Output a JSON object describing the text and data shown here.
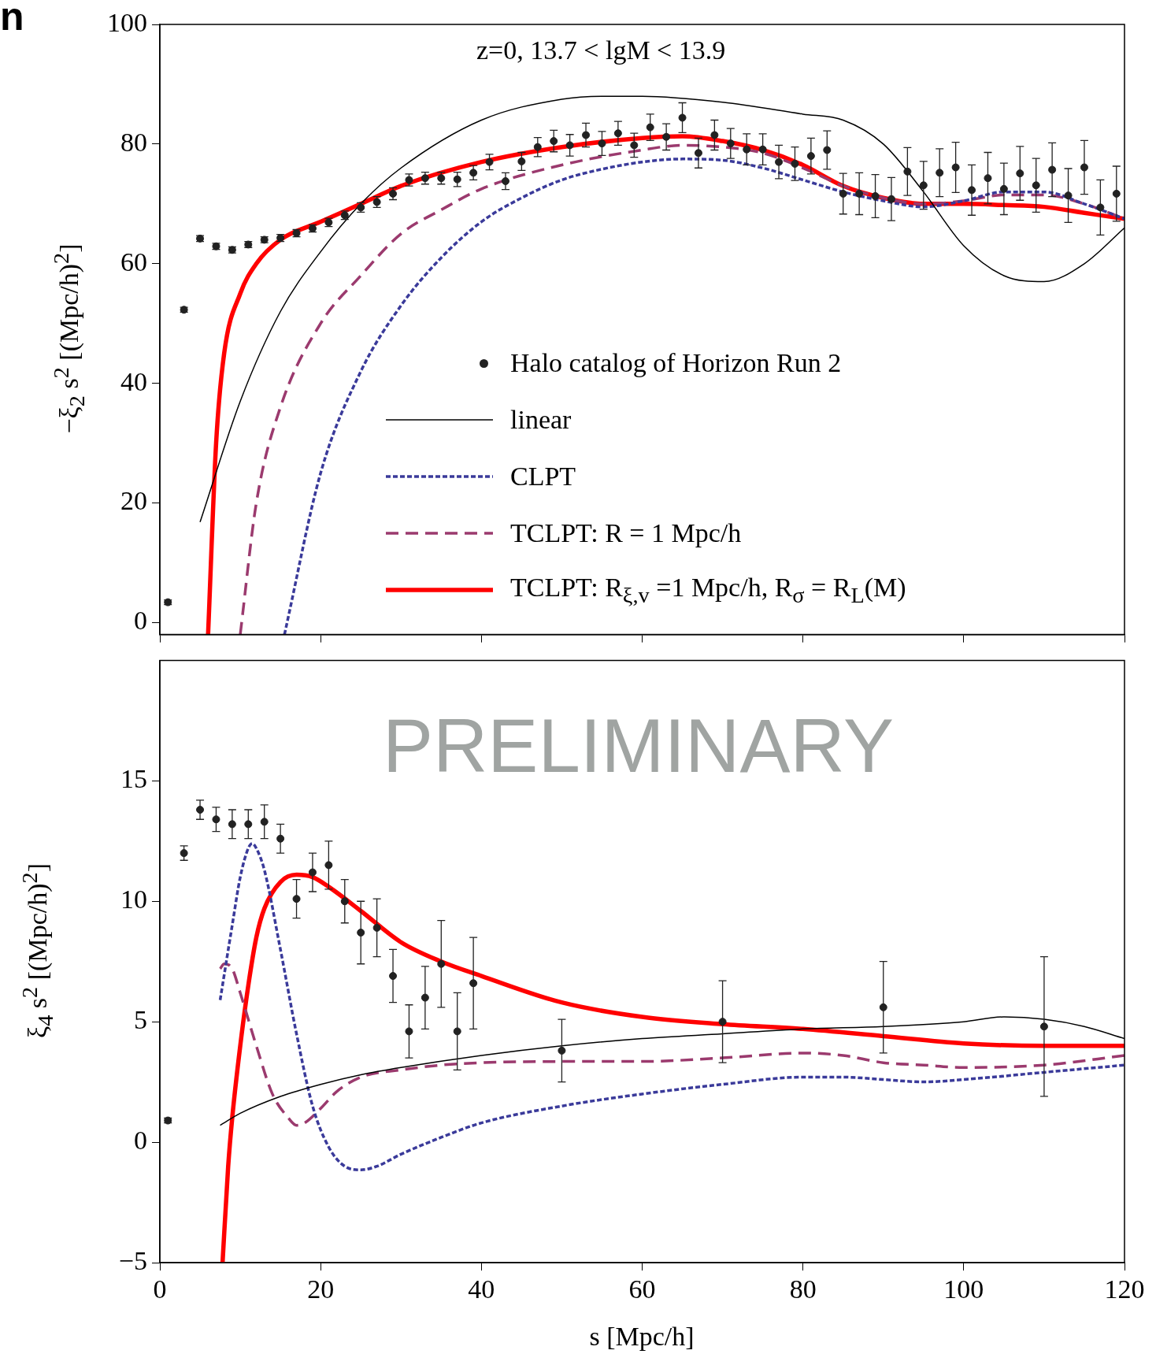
{
  "chart_data": [
    {
      "type": "scatter",
      "ylabel": "−ξ$_{2}$ s$^{2}$  [(Mpc/h)$^{2}$]",
      "xlim": [
        0,
        120
      ],
      "xticks": [
        0,
        20,
        40,
        60,
        80,
        100,
        120
      ],
      "ylim": [
        -2,
        100
      ],
      "yticks": [
        0,
        20,
        40,
        60,
        80,
        100
      ],
      "tick_labels": "y",
      "grid": false,
      "legend": "right",
      "annotations": [
        "n",
        "z=0,   13.7 < lgM < 13.9"
      ],
      "series": [
        {
          "name": "Halo catalog of Horizon Run 2",
          "type": "scatter",
          "color": "#222222",
          "marker": "circle",
          "x": [
            1,
            3,
            5,
            7,
            9,
            11,
            13,
            15,
            17,
            19,
            21,
            23,
            25,
            27,
            29,
            31,
            33,
            35,
            37,
            39,
            41,
            43,
            45,
            47,
            49,
            51,
            53,
            55,
            57,
            59,
            61,
            63,
            65,
            67,
            69,
            71,
            73,
            75,
            77,
            79,
            81,
            83,
            85,
            87,
            89,
            91,
            93,
            95,
            97,
            99,
            101,
            103,
            105,
            107,
            109,
            111,
            113,
            115,
            117,
            119
          ],
          "values": [
            3.4,
            52.3,
            64.2,
            62.9,
            62.3,
            63.2,
            64.0,
            64.3,
            65.1,
            65.9,
            66.9,
            68.1,
            69.4,
            70.3,
            71.7,
            74.0,
            74.3,
            74.3,
            74.1,
            75.2,
            77.0,
            73.8,
            77.1,
            79.5,
            80.5,
            79.8,
            81.5,
            80.1,
            81.8,
            79.8,
            82.8,
            81.2,
            84.4,
            78.5,
            81.5,
            80.1,
            79.1,
            79.1,
            77.0,
            76.7,
            78.0,
            79.0,
            71.7,
            71.7,
            71.3,
            70.8,
            75.4,
            73.1,
            75.2,
            76.1,
            72.3,
            74.3,
            72.5,
            75.1,
            73.1,
            75.7,
            71.4,
            76.1,
            69.4,
            71.7
          ],
          "errors": [
            0.4,
            0.4,
            0.5,
            0.5,
            0.5,
            0.5,
            0.5,
            0.6,
            0.6,
            0.6,
            0.7,
            0.7,
            0.8,
            0.9,
            1,
            1,
            1,
            1,
            1.2,
            1.2,
            1.3,
            1.4,
            1.5,
            1.6,
            1.8,
            1.8,
            2,
            2,
            2,
            2,
            2.2,
            2.2,
            2.5,
            2.5,
            2.5,
            2.5,
            2.6,
            2.6,
            2.8,
            2.8,
            3,
            3.2,
            3.4,
            3.5,
            3.6,
            3.6,
            4,
            4,
            4,
            4.2,
            4.2,
            4.3,
            4.3,
            4.5,
            4.5,
            4.5,
            4.5,
            4.5,
            4.6,
            4.6
          ]
        },
        {
          "name": "linear",
          "type": "line",
          "color": "#000000",
          "line_style": "solid",
          "x": [
            5,
            10,
            15,
            20,
            25,
            30,
            40,
            50,
            55,
            60,
            70,
            80,
            85,
            90,
            95,
            100,
            105,
            110,
            115,
            120
          ],
          "values": [
            16.8,
            37,
            52,
            62,
            70,
            76,
            84,
            87.5,
            88,
            88,
            87,
            85,
            84,
            80,
            72,
            63,
            58,
            57,
            60,
            66
          ]
        },
        {
          "name": "CLPT",
          "type": "line",
          "color": "#3a3a9a",
          "line_style": "dotted",
          "x": [
            15.5,
            20,
            25,
            30,
            35,
            40,
            45,
            50,
            55,
            60,
            65,
            70,
            75,
            80,
            85,
            90,
            95,
            100,
            105,
            110,
            115,
            120
          ],
          "values": [
            -2,
            25,
            42,
            53,
            61,
            67,
            71,
            74,
            75.8,
            77,
            77.5,
            77.3,
            76,
            74,
            72,
            70.5,
            69.5,
            70.5,
            72,
            72,
            70,
            67.5
          ]
        },
        {
          "name": "TCLPT: R = 1 Mpc/h",
          "type": "line",
          "color": "#9b3a6e",
          "line_style": "dashed",
          "x": [
            10,
            12,
            15,
            20,
            25,
            30,
            35,
            40,
            50,
            60,
            65,
            70,
            75,
            80,
            85,
            90,
            95,
            100,
            105,
            110,
            115,
            120
          ],
          "values": [
            -2,
            20,
            36,
            50,
            58,
            65,
            69,
            72.5,
            76.5,
            79,
            79.8,
            79.5,
            78.5,
            76,
            73,
            71,
            70,
            70.5,
            71.5,
            71.5,
            70,
            67.5
          ]
        },
        {
          "name": "TCLPT: R$_{ξ,v}$ =1 Mpc/h, R$_{σ}$ = R$_{L}$(M)",
          "type": "line",
          "color": "#ff0000",
          "line_style": "solid",
          "x": [
            6,
            7,
            8,
            10,
            12,
            15,
            20,
            25,
            30,
            40,
            50,
            60,
            65,
            70,
            75,
            80,
            85,
            90,
            95,
            100,
            105,
            110,
            115,
            120
          ],
          "values": [
            -2,
            30,
            45,
            55,
            60,
            64,
            67,
            70,
            73,
            77,
            79.5,
            81,
            81.3,
            80.5,
            79,
            76.5,
            73,
            71,
            70,
            70,
            69.8,
            69.5,
            68.5,
            67.5
          ]
        }
      ]
    },
    {
      "type": "scatter",
      "ylabel": "ξ$_{4}$ s$^{2}$  [(Mpc/h)$^{2}$]",
      "xlabel": "s  [Mpc/h]",
      "xlim": [
        0,
        120
      ],
      "xticks": [
        0,
        20,
        40,
        60,
        80,
        100,
        120
      ],
      "ylim": [
        -5,
        20
      ],
      "yticks": [
        -5,
        0,
        5,
        10,
        15
      ],
      "grid": false,
      "annotations": [
        "PRELIMINARY"
      ],
      "series": [
        {
          "type": "scatter",
          "color": "#222222",
          "x": [
            1,
            3,
            5,
            7,
            9,
            11,
            13,
            15,
            17,
            19,
            21,
            23,
            25,
            27,
            29,
            31,
            33,
            35,
            37,
            39,
            50,
            70,
            90,
            110
          ],
          "values": [
            0.9,
            12.0,
            13.8,
            13.4,
            13.2,
            13.2,
            13.3,
            12.6,
            10.1,
            11.2,
            11.5,
            10.0,
            8.7,
            8.9,
            6.9,
            4.6,
            6.0,
            7.4,
            4.6,
            6.6,
            3.8,
            5.0,
            5.6,
            4.8
          ],
          "errors": [
            0.1,
            0.3,
            0.4,
            0.5,
            0.6,
            0.6,
            0.7,
            0.6,
            0.8,
            0.8,
            1.0,
            0.9,
            1.3,
            1.2,
            1.1,
            1.1,
            1.3,
            1.8,
            1.6,
            1.9,
            1.3,
            1.7,
            1.9,
            2.9
          ]
        },
        {
          "type": "line",
          "color": "#000000",
          "line_style": "solid",
          "x": [
            7.5,
            10,
            15,
            20,
            25,
            30,
            40,
            50,
            60,
            70,
            80,
            90,
            100,
            105,
            110,
            115,
            120
          ],
          "values": [
            0.7,
            1.2,
            1.9,
            2.4,
            2.8,
            3.1,
            3.6,
            4.0,
            4.3,
            4.5,
            4.7,
            4.8,
            5.0,
            5.2,
            5.1,
            4.8,
            4.3
          ]
        },
        {
          "type": "line",
          "color": "#3a3a9a",
          "line_style": "dotted",
          "x": [
            7.5,
            9,
            10,
            11,
            11.5,
            12,
            13,
            15,
            17,
            19,
            21,
            23,
            25,
            27,
            30,
            35,
            40,
            50,
            60,
            70,
            80,
            85,
            90,
            95,
            100,
            110,
            120
          ],
          "values": [
            5.9,
            9,
            11,
            12.2,
            12.4,
            12.2,
            11.3,
            8,
            4.5,
            1.5,
            -0.2,
            -1,
            -1.15,
            -1,
            -0.5,
            0.2,
            0.8,
            1.5,
            2.0,
            2.4,
            2.7,
            2.7,
            2.6,
            2.5,
            2.6,
            2.9,
            3.2
          ]
        },
        {
          "type": "line",
          "color": "#9b3a6e",
          "line_style": "dashed",
          "x": [
            7.5,
            8,
            9,
            10,
            12,
            14,
            16,
            17,
            18,
            20,
            22,
            25,
            30,
            35,
            40,
            50,
            60,
            70,
            80,
            85,
            90,
            95,
            100,
            110,
            120
          ],
          "values": [
            7.2,
            7.4,
            7.2,
            6.2,
            4,
            2,
            1,
            0.7,
            0.8,
            1.4,
            2.1,
            2.7,
            3.0,
            3.2,
            3.3,
            3.35,
            3.35,
            3.5,
            3.7,
            3.6,
            3.3,
            3.2,
            3.1,
            3.2,
            3.6
          ]
        },
        {
          "type": "line",
          "color": "#ff0000",
          "line_style": "solid",
          "x": [
            7.8,
            8.5,
            9,
            10,
            11,
            12,
            13,
            15,
            17,
            19,
            21,
            25,
            30,
            35,
            40,
            50,
            60,
            70,
            80,
            90,
            100,
            110,
            120
          ],
          "values": [
            -5,
            -1,
            1,
            4,
            6.5,
            8.5,
            9.7,
            10.8,
            11.1,
            11.0,
            10.6,
            9.6,
            8.3,
            7.5,
            6.9,
            5.8,
            5.2,
            4.9,
            4.7,
            4.4,
            4.1,
            4.0,
            4.0
          ]
        }
      ]
    }
  ]
}
